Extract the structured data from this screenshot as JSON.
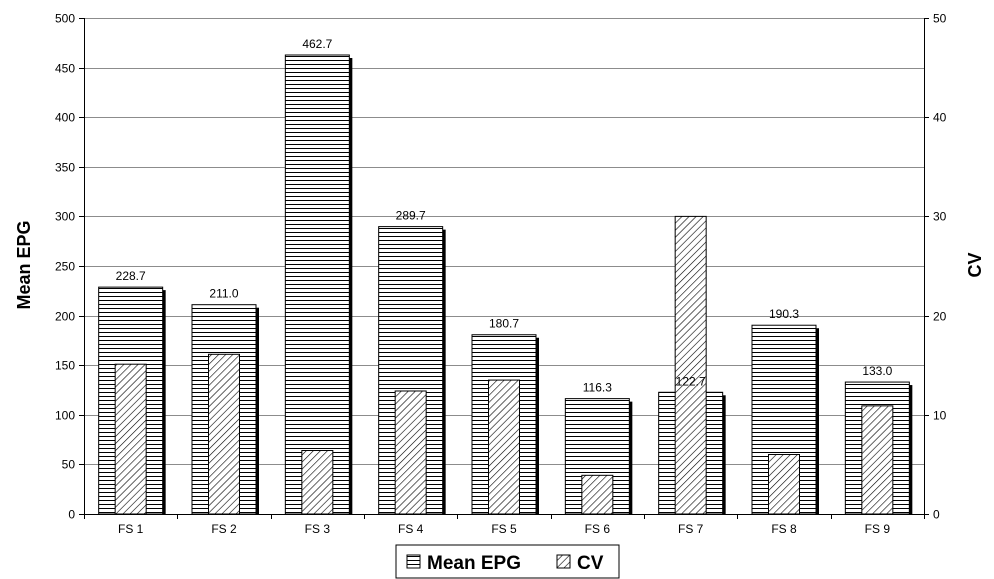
{
  "chart_data": {
    "type": "bar",
    "categories": [
      "FS 1",
      "FS 2",
      "FS 3",
      "FS 4",
      "FS 5",
      "FS 6",
      "FS 7",
      "FS 8",
      "FS 9"
    ],
    "series": [
      {
        "name": "Mean EPG",
        "axis": "left",
        "pattern": "horizontal-lines",
        "values": [
          228.7,
          211.0,
          462.7,
          289.7,
          180.7,
          116.3,
          122.7,
          190.3,
          133.0
        ],
        "data_labels": [
          "228.7",
          "211.0",
          "462.7",
          "289.7",
          "180.7",
          "116.3",
          "122.7",
          "190.3",
          "133.0"
        ]
      },
      {
        "name": "CV",
        "axis": "right",
        "pattern": "diagonal-hatch",
        "values": [
          15.1,
          16.1,
          6.4,
          12.4,
          13.5,
          3.9,
          30.0,
          6.0,
          10.9
        ]
      }
    ],
    "ylabel": "Mean EPG",
    "ylabel_right": "CV",
    "ylim": [
      0,
      500
    ],
    "ylim_right": [
      0,
      50
    ],
    "yticks": [
      "0",
      "50",
      "100",
      "150",
      "200",
      "250",
      "300",
      "350",
      "400",
      "450",
      "500"
    ],
    "yticks_right": [
      "0",
      "10",
      "20",
      "30",
      "40",
      "50"
    ],
    "grid": true,
    "legend_position": "bottom-center"
  }
}
